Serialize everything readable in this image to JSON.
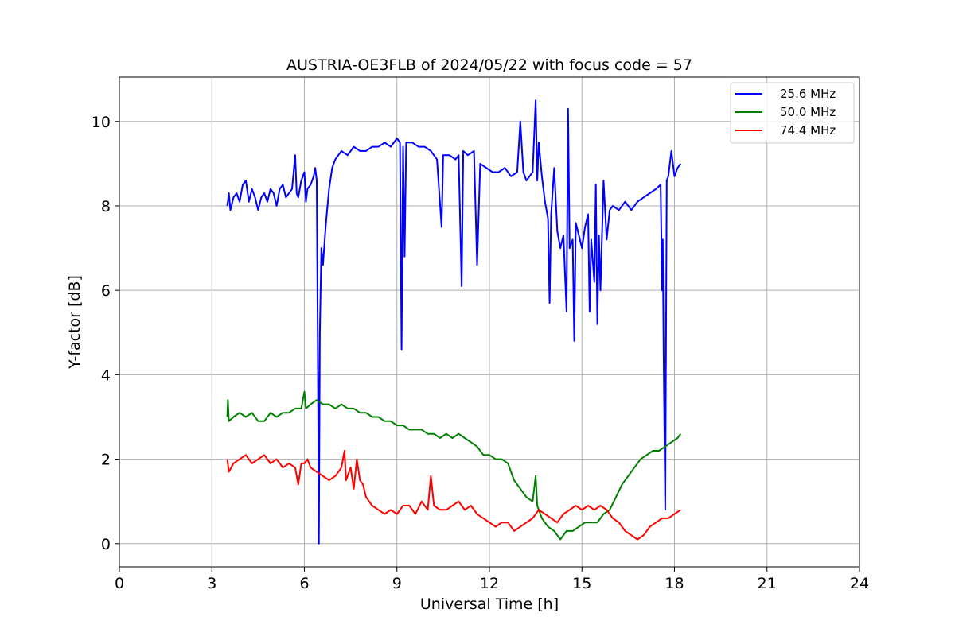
{
  "chart_data": {
    "type": "line",
    "title": "AUSTRIA-OE3FLB of 2024/05/22 with focus code = 57",
    "xlabel": "Universal Time [h]",
    "ylabel": "Y-factor [dB]",
    "xlim": [
      0,
      24
    ],
    "ylim": [
      -0.55,
      11.05
    ],
    "xticks": [
      0,
      3,
      6,
      9,
      12,
      15,
      18,
      21,
      24
    ],
    "yticks": [
      0,
      2,
      4,
      6,
      8,
      10
    ],
    "grid": true,
    "legend_position": "top-right",
    "series": [
      {
        "name": "25.6 MHz",
        "color": "#0000ff",
        "points": [
          [
            3.5,
            8.0
          ],
          [
            3.55,
            8.3
          ],
          [
            3.6,
            7.9
          ],
          [
            3.7,
            8.2
          ],
          [
            3.8,
            8.3
          ],
          [
            3.9,
            8.1
          ],
          [
            4.0,
            8.5
          ],
          [
            4.1,
            8.6
          ],
          [
            4.2,
            8.1
          ],
          [
            4.3,
            8.4
          ],
          [
            4.4,
            8.2
          ],
          [
            4.5,
            7.9
          ],
          [
            4.6,
            8.2
          ],
          [
            4.7,
            8.3
          ],
          [
            4.8,
            8.1
          ],
          [
            4.9,
            8.4
          ],
          [
            5.0,
            8.3
          ],
          [
            5.1,
            8.0
          ],
          [
            5.2,
            8.4
          ],
          [
            5.3,
            8.5
          ],
          [
            5.4,
            8.2
          ],
          [
            5.5,
            8.3
          ],
          [
            5.6,
            8.4
          ],
          [
            5.7,
            9.2
          ],
          [
            5.75,
            8.3
          ],
          [
            5.8,
            8.2
          ],
          [
            5.9,
            8.6
          ],
          [
            6.0,
            8.8
          ],
          [
            6.05,
            8.1
          ],
          [
            6.1,
            8.4
          ],
          [
            6.2,
            8.5
          ],
          [
            6.3,
            8.7
          ],
          [
            6.35,
            8.9
          ],
          [
            6.4,
            8.6
          ],
          [
            6.45,
            3.0
          ],
          [
            6.47,
            0.0
          ],
          [
            6.5,
            5.0
          ],
          [
            6.55,
            7.0
          ],
          [
            6.6,
            6.6
          ],
          [
            6.7,
            7.6
          ],
          [
            6.8,
            8.4
          ],
          [
            6.9,
            8.9
          ],
          [
            7.0,
            9.1
          ],
          [
            7.2,
            9.3
          ],
          [
            7.4,
            9.2
          ],
          [
            7.6,
            9.4
          ],
          [
            7.8,
            9.3
          ],
          [
            8.0,
            9.3
          ],
          [
            8.2,
            9.4
          ],
          [
            8.4,
            9.4
          ],
          [
            8.6,
            9.5
          ],
          [
            8.8,
            9.4
          ],
          [
            9.0,
            9.6
          ],
          [
            9.1,
            9.5
          ],
          [
            9.15,
            4.6
          ],
          [
            9.2,
            9.4
          ],
          [
            9.25,
            6.8
          ],
          [
            9.3,
            9.5
          ],
          [
            9.5,
            9.5
          ],
          [
            9.7,
            9.4
          ],
          [
            9.9,
            9.4
          ],
          [
            10.1,
            9.3
          ],
          [
            10.3,
            9.1
          ],
          [
            10.45,
            7.5
          ],
          [
            10.5,
            9.2
          ],
          [
            10.7,
            9.2
          ],
          [
            10.9,
            9.1
          ],
          [
            11.0,
            9.2
          ],
          [
            11.1,
            6.1
          ],
          [
            11.15,
            9.3
          ],
          [
            11.3,
            9.2
          ],
          [
            11.5,
            9.3
          ],
          [
            11.6,
            6.6
          ],
          [
            11.7,
            9.0
          ],
          [
            11.9,
            8.9
          ],
          [
            12.1,
            8.8
          ],
          [
            12.3,
            8.8
          ],
          [
            12.5,
            8.9
          ],
          [
            12.7,
            8.7
          ],
          [
            12.9,
            8.8
          ],
          [
            13.0,
            10.0
          ],
          [
            13.1,
            8.8
          ],
          [
            13.2,
            8.6
          ],
          [
            13.3,
            8.7
          ],
          [
            13.4,
            8.8
          ],
          [
            13.5,
            10.5
          ],
          [
            13.55,
            8.6
          ],
          [
            13.6,
            9.5
          ],
          [
            13.7,
            8.7
          ],
          [
            13.8,
            8.1
          ],
          [
            13.9,
            7.7
          ],
          [
            13.95,
            5.7
          ],
          [
            14.0,
            7.8
          ],
          [
            14.1,
            8.9
          ],
          [
            14.2,
            7.4
          ],
          [
            14.3,
            7.0
          ],
          [
            14.4,
            7.3
          ],
          [
            14.5,
            5.5
          ],
          [
            14.55,
            10.3
          ],
          [
            14.6,
            7.0
          ],
          [
            14.7,
            7.2
          ],
          [
            14.75,
            4.8
          ],
          [
            14.8,
            7.6
          ],
          [
            14.9,
            7.3
          ],
          [
            15.0,
            7.0
          ],
          [
            15.1,
            7.5
          ],
          [
            15.2,
            7.8
          ],
          [
            15.25,
            5.5
          ],
          [
            15.3,
            7.2
          ],
          [
            15.4,
            6.2
          ],
          [
            15.45,
            8.5
          ],
          [
            15.5,
            5.2
          ],
          [
            15.55,
            7.3
          ],
          [
            15.6,
            6.0
          ],
          [
            15.7,
            8.6
          ],
          [
            15.8,
            7.2
          ],
          [
            15.9,
            7.9
          ],
          [
            16.0,
            8.0
          ],
          [
            16.2,
            7.9
          ],
          [
            16.4,
            8.1
          ],
          [
            16.6,
            7.9
          ],
          [
            16.8,
            8.1
          ],
          [
            17.0,
            8.2
          ],
          [
            17.2,
            8.3
          ],
          [
            17.4,
            8.4
          ],
          [
            17.55,
            8.5
          ],
          [
            17.6,
            6.0
          ],
          [
            17.62,
            7.2
          ],
          [
            17.65,
            4.5
          ],
          [
            17.7,
            0.8
          ],
          [
            17.75,
            8.6
          ],
          [
            17.8,
            8.7
          ],
          [
            17.9,
            9.3
          ],
          [
            18.0,
            8.7
          ],
          [
            18.1,
            8.9
          ],
          [
            18.2,
            9.0
          ]
        ]
      },
      {
        "name": "50.0 MHz",
        "color": "#008000",
        "points": [
          [
            3.5,
            3.0
          ],
          [
            3.52,
            3.4
          ],
          [
            3.55,
            2.9
          ],
          [
            3.7,
            3.0
          ],
          [
            3.9,
            3.1
          ],
          [
            4.1,
            3.0
          ],
          [
            4.3,
            3.1
          ],
          [
            4.5,
            2.9
          ],
          [
            4.7,
            2.9
          ],
          [
            4.9,
            3.1
          ],
          [
            5.1,
            3.0
          ],
          [
            5.3,
            3.1
          ],
          [
            5.5,
            3.1
          ],
          [
            5.7,
            3.2
          ],
          [
            5.9,
            3.2
          ],
          [
            6.0,
            3.6
          ],
          [
            6.05,
            3.2
          ],
          [
            6.2,
            3.3
          ],
          [
            6.4,
            3.4
          ],
          [
            6.6,
            3.3
          ],
          [
            6.8,
            3.3
          ],
          [
            7.0,
            3.2
          ],
          [
            7.2,
            3.3
          ],
          [
            7.4,
            3.2
          ],
          [
            7.6,
            3.2
          ],
          [
            7.8,
            3.1
          ],
          [
            8.0,
            3.1
          ],
          [
            8.2,
            3.0
          ],
          [
            8.4,
            3.0
          ],
          [
            8.6,
            2.9
          ],
          [
            8.8,
            2.9
          ],
          [
            9.0,
            2.8
          ],
          [
            9.2,
            2.8
          ],
          [
            9.4,
            2.7
          ],
          [
            9.6,
            2.7
          ],
          [
            9.8,
            2.7
          ],
          [
            10.0,
            2.6
          ],
          [
            10.2,
            2.6
          ],
          [
            10.4,
            2.5
          ],
          [
            10.6,
            2.6
          ],
          [
            10.8,
            2.5
          ],
          [
            11.0,
            2.6
          ],
          [
            11.2,
            2.5
          ],
          [
            11.4,
            2.4
          ],
          [
            11.6,
            2.3
          ],
          [
            11.8,
            2.1
          ],
          [
            12.0,
            2.1
          ],
          [
            12.2,
            2.0
          ],
          [
            12.4,
            2.0
          ],
          [
            12.6,
            1.9
          ],
          [
            12.8,
            1.5
          ],
          [
            13.0,
            1.3
          ],
          [
            13.2,
            1.1
          ],
          [
            13.4,
            1.0
          ],
          [
            13.5,
            1.6
          ],
          [
            13.55,
            0.9
          ],
          [
            13.7,
            0.6
          ],
          [
            13.9,
            0.4
          ],
          [
            14.1,
            0.3
          ],
          [
            14.3,
            0.1
          ],
          [
            14.5,
            0.3
          ],
          [
            14.7,
            0.3
          ],
          [
            14.9,
            0.4
          ],
          [
            15.1,
            0.5
          ],
          [
            15.3,
            0.5
          ],
          [
            15.5,
            0.5
          ],
          [
            15.7,
            0.7
          ],
          [
            15.9,
            0.8
          ],
          [
            16.1,
            1.1
          ],
          [
            16.3,
            1.4
          ],
          [
            16.5,
            1.6
          ],
          [
            16.7,
            1.8
          ],
          [
            16.9,
            2.0
          ],
          [
            17.1,
            2.1
          ],
          [
            17.3,
            2.2
          ],
          [
            17.5,
            2.2
          ],
          [
            17.7,
            2.3
          ],
          [
            17.9,
            2.4
          ],
          [
            18.1,
            2.5
          ],
          [
            18.2,
            2.6
          ]
        ]
      },
      {
        "name": "74.4 MHz",
        "color": "#ff0000",
        "points": [
          [
            3.5,
            2.0
          ],
          [
            3.55,
            1.7
          ],
          [
            3.7,
            1.9
          ],
          [
            3.9,
            2.0
          ],
          [
            4.1,
            2.1
          ],
          [
            4.3,
            1.9
          ],
          [
            4.5,
            2.0
          ],
          [
            4.7,
            2.1
          ],
          [
            4.9,
            1.9
          ],
          [
            5.1,
            2.0
          ],
          [
            5.3,
            1.8
          ],
          [
            5.5,
            1.9
          ],
          [
            5.7,
            1.8
          ],
          [
            5.8,
            1.4
          ],
          [
            5.9,
            1.9
          ],
          [
            6.0,
            1.9
          ],
          [
            6.1,
            2.0
          ],
          [
            6.2,
            1.8
          ],
          [
            6.4,
            1.7
          ],
          [
            6.6,
            1.6
          ],
          [
            6.8,
            1.5
          ],
          [
            7.0,
            1.6
          ],
          [
            7.2,
            1.8
          ],
          [
            7.3,
            2.2
          ],
          [
            7.35,
            1.5
          ],
          [
            7.5,
            1.8
          ],
          [
            7.6,
            1.3
          ],
          [
            7.7,
            2.0
          ],
          [
            7.8,
            1.5
          ],
          [
            7.9,
            1.4
          ],
          [
            8.0,
            1.1
          ],
          [
            8.2,
            0.9
          ],
          [
            8.4,
            0.8
          ],
          [
            8.6,
            0.7
          ],
          [
            8.8,
            0.8
          ],
          [
            9.0,
            0.7
          ],
          [
            9.2,
            0.9
          ],
          [
            9.4,
            0.9
          ],
          [
            9.6,
            0.7
          ],
          [
            9.8,
            1.0
          ],
          [
            10.0,
            0.8
          ],
          [
            10.1,
            1.6
          ],
          [
            10.2,
            0.9
          ],
          [
            10.4,
            0.8
          ],
          [
            10.6,
            0.8
          ],
          [
            10.8,
            0.9
          ],
          [
            11.0,
            1.0
          ],
          [
            11.2,
            0.8
          ],
          [
            11.4,
            0.9
          ],
          [
            11.6,
            0.7
          ],
          [
            11.8,
            0.6
          ],
          [
            12.0,
            0.5
          ],
          [
            12.2,
            0.4
          ],
          [
            12.4,
            0.5
          ],
          [
            12.6,
            0.5
          ],
          [
            12.8,
            0.3
          ],
          [
            13.0,
            0.4
          ],
          [
            13.2,
            0.5
          ],
          [
            13.4,
            0.6
          ],
          [
            13.6,
            0.8
          ],
          [
            13.8,
            0.7
          ],
          [
            14.0,
            0.6
          ],
          [
            14.2,
            0.5
          ],
          [
            14.4,
            0.7
          ],
          [
            14.6,
            0.8
          ],
          [
            14.8,
            0.9
          ],
          [
            15.0,
            0.8
          ],
          [
            15.2,
            0.9
          ],
          [
            15.4,
            0.8
          ],
          [
            15.6,
            0.9
          ],
          [
            15.8,
            0.8
          ],
          [
            16.0,
            0.6
          ],
          [
            16.2,
            0.5
          ],
          [
            16.4,
            0.3
          ],
          [
            16.6,
            0.2
          ],
          [
            16.8,
            0.1
          ],
          [
            17.0,
            0.2
          ],
          [
            17.2,
            0.4
          ],
          [
            17.4,
            0.5
          ],
          [
            17.6,
            0.6
          ],
          [
            17.8,
            0.6
          ],
          [
            18.0,
            0.7
          ],
          [
            18.2,
            0.8
          ]
        ]
      }
    ]
  }
}
